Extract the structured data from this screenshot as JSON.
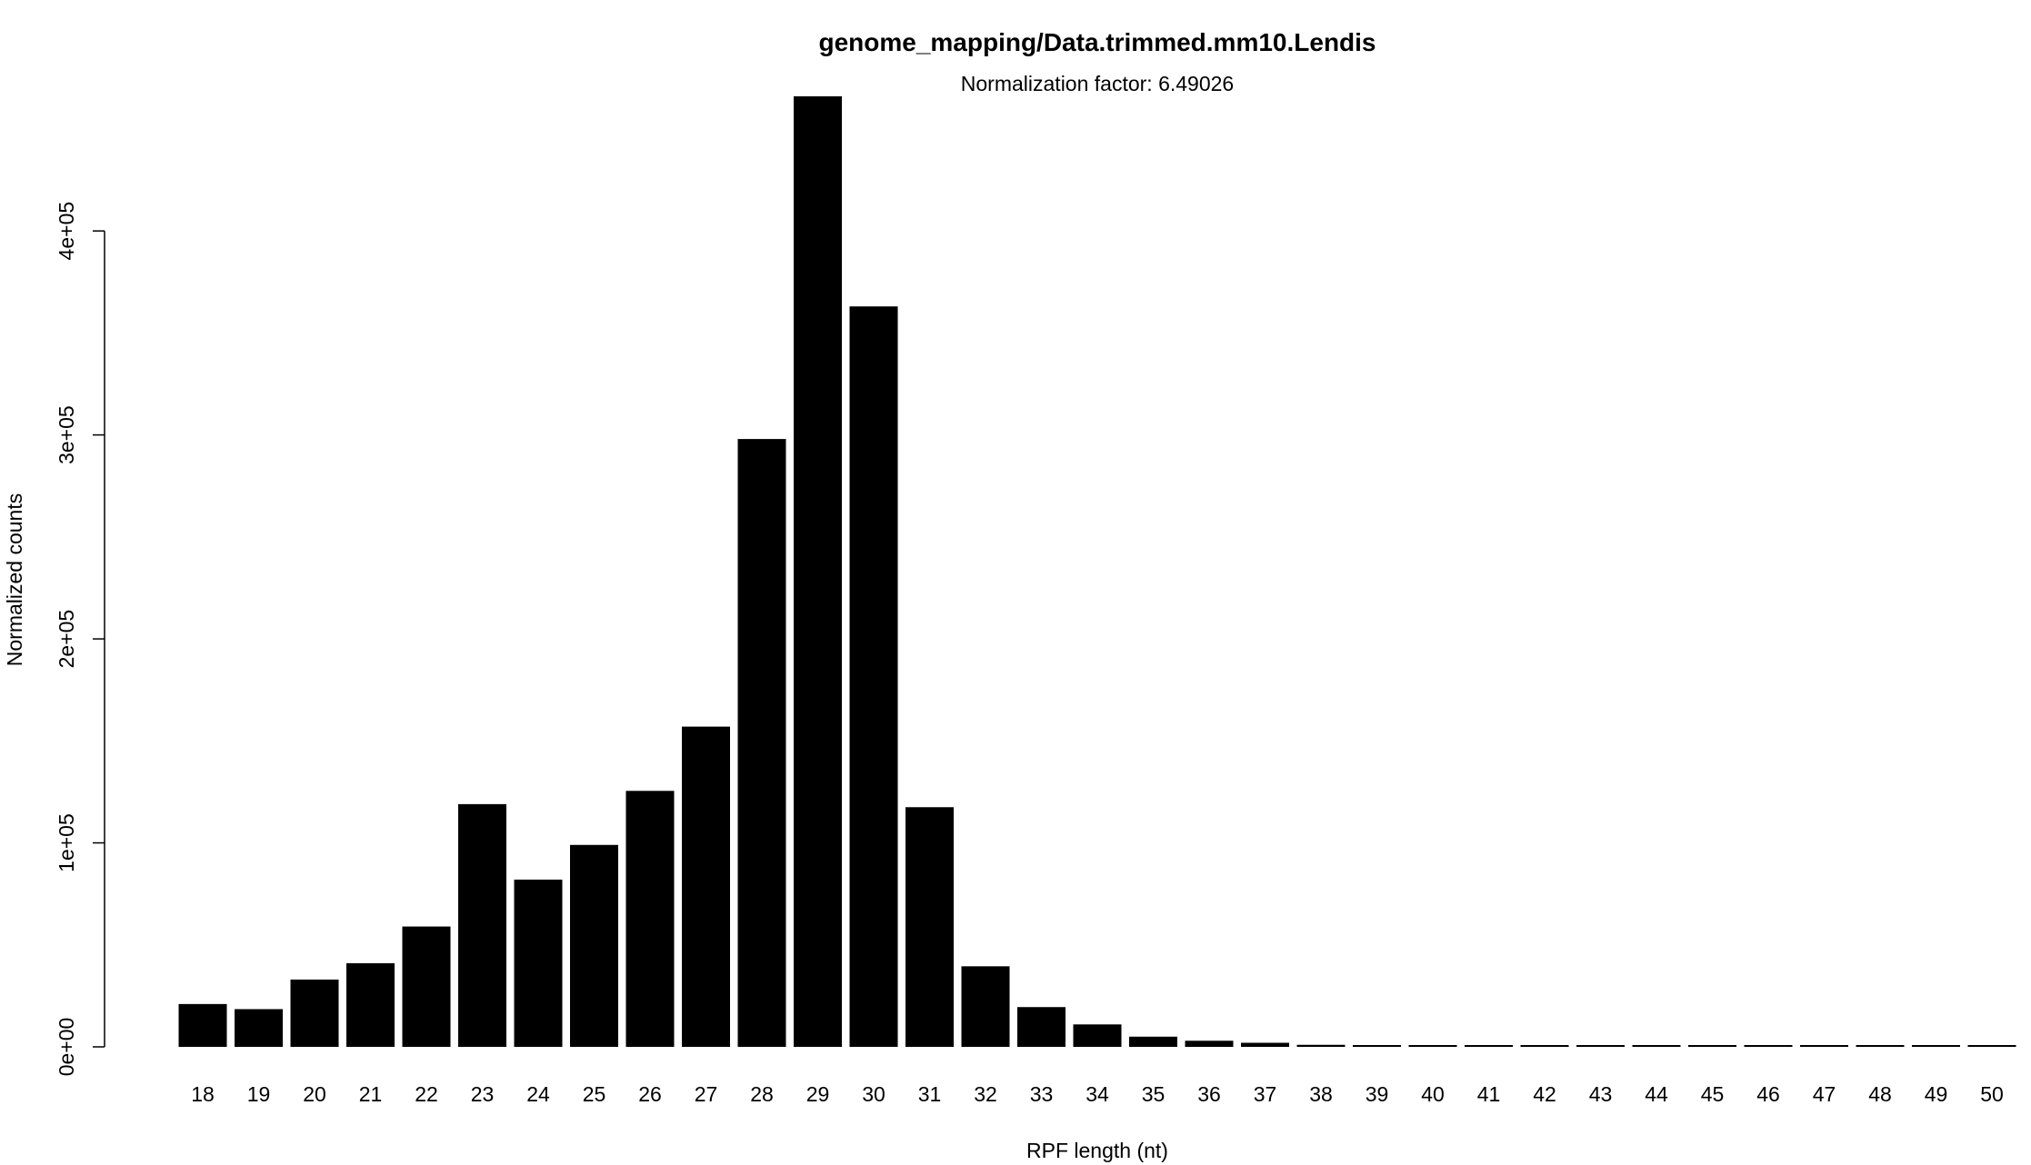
{
  "chart_data": {
    "type": "bar",
    "title": "genome_mapping/Data.trimmed.mm10.Lendis",
    "subtitle": "Normalization factor: 6.49026",
    "xlabel": "RPF length (nt)",
    "ylabel": "Normalized counts",
    "categories": [
      "18",
      "19",
      "20",
      "21",
      "22",
      "23",
      "24",
      "25",
      "26",
      "27",
      "28",
      "29",
      "30",
      "31",
      "32",
      "33",
      "34",
      "35",
      "36",
      "37",
      "38",
      "39",
      "40",
      "41",
      "42",
      "43",
      "44",
      "45",
      "46",
      "47",
      "48",
      "49",
      "50"
    ],
    "values": [
      21000,
      18500,
      33000,
      41000,
      59000,
      119000,
      82000,
      99000,
      125500,
      157000,
      298000,
      466000,
      363000,
      117500,
      39500,
      19500,
      11000,
      5000,
      3000,
      2000,
      1000,
      500,
      300,
      200,
      200,
      200,
      200,
      200,
      200,
      200,
      200,
      200,
      200
    ],
    "ylim": [
      0,
      466000
    ],
    "yticks": [
      0,
      100000,
      200000,
      300000,
      400000
    ],
    "ytick_labels": [
      "0e+00",
      "1e+05",
      "2e+05",
      "3e+05",
      "4e+05"
    ],
    "grid": false,
    "legend": "none",
    "bar_color": "#000000"
  }
}
